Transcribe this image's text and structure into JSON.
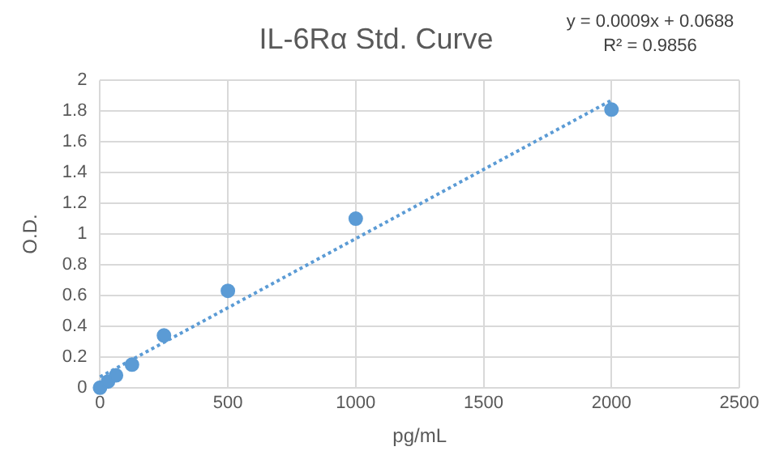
{
  "chart_data": {
    "type": "scatter",
    "title": "IL-6Rα Std. Curve",
    "xlabel": "pg/mL",
    "ylabel": "O.D.",
    "annotations": [
      "y = 0.0009x + 0.0688",
      "R² = 0.9856"
    ],
    "xlim": [
      0,
      2500
    ],
    "xticks": [
      0,
      500,
      1000,
      1500,
      2000,
      2500
    ],
    "ylim": [
      0,
      2
    ],
    "yticks": [
      0,
      0.2,
      0.4,
      0.6,
      0.8,
      1,
      1.2,
      1.4,
      1.6,
      1.8,
      2
    ],
    "grid": true,
    "legend": false,
    "marker": "circle",
    "series": [
      {
        "color": "#5b9bd5",
        "x": [
          0,
          15.6,
          31.25,
          62.5,
          125,
          250,
          500,
          1000,
          2000
        ],
        "values": [
          0.0,
          null,
          0.04,
          0.08,
          0.15,
          0.34,
          0.63,
          1.1,
          1.81
        ]
      },
      {
        "type": "line",
        "color": "#5b9bd5",
        "line_style": "dotted",
        "marker": "none",
        "x": [
          0,
          2000
        ],
        "values": [
          0.07,
          1.87
        ]
      }
    ]
  }
}
